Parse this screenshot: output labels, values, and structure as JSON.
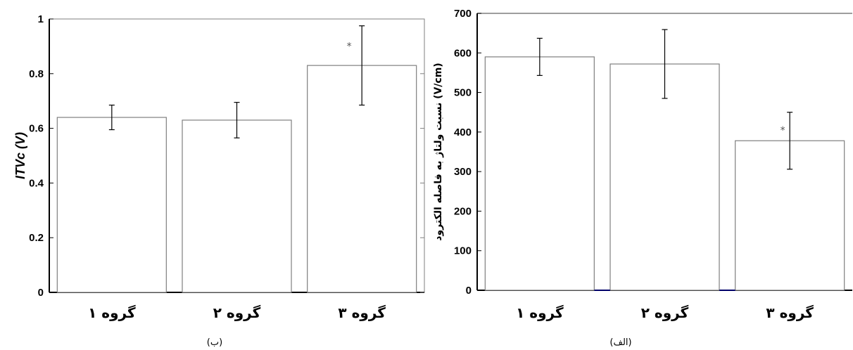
{
  "chart_data": [
    {
      "type": "bar",
      "caption": "(ب)",
      "ylabel": "ITVc (V)",
      "categories": [
        "گروه ۱",
        "گروه ۲",
        "گروه ۳"
      ],
      "values": [
        0.64,
        0.63,
        0.83
      ],
      "errors": [
        0.045,
        0.065,
        0.145
      ],
      "significance": [
        "",
        "",
        "*"
      ],
      "ylim": [
        0,
        1
      ],
      "yticks": [
        "0",
        "0.2",
        "0.4",
        "0.6",
        "0.8",
        "1"
      ],
      "ytick_values": [
        0,
        0.2,
        0.4,
        0.6,
        0.8,
        1
      ]
    },
    {
      "type": "bar",
      "caption": "(الف)",
      "ylabel": "نسبت ولتاژ به فاصله الکترود   (V/cm)",
      "categories": [
        "گروه ۱",
        "گروه ۲",
        "گروه ۳"
      ],
      "values": [
        590,
        572,
        378
      ],
      "errors": [
        47,
        87,
        72
      ],
      "significance": [
        "",
        "",
        "*"
      ],
      "ylim": [
        0,
        700
      ],
      "yticks": [
        "0",
        "100",
        "200",
        "300",
        "400",
        "500",
        "600",
        "700"
      ],
      "ytick_values": [
        0,
        100,
        200,
        300,
        400,
        500,
        600,
        700
      ]
    }
  ],
  "colors": {
    "bar_fill": "#ffffff",
    "bar_stroke": "#7f7f7f",
    "axis": "#000000",
    "baseline_accent": "#00008b"
  }
}
